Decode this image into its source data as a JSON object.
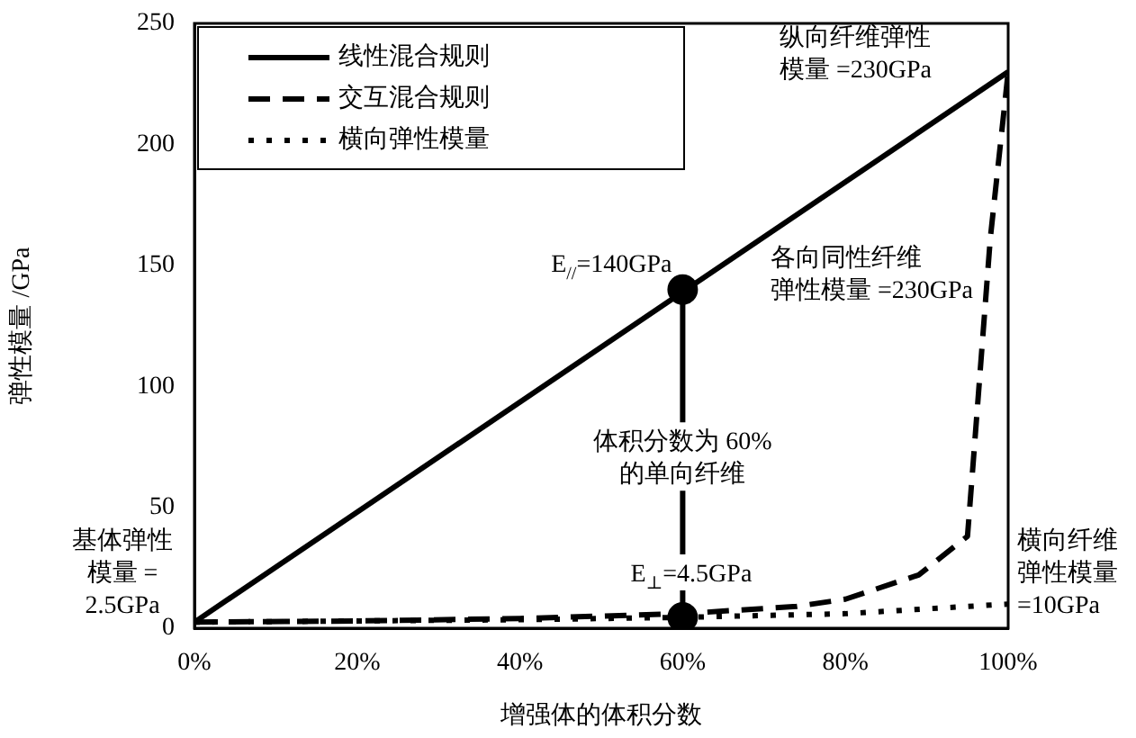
{
  "chart_data": {
    "type": "line",
    "xlabel": "增强体的体积分数",
    "ylabel": "弹性模量 /GPa",
    "xlim": [
      0,
      100
    ],
    "xticks": [
      {
        "value": 0,
        "label": "0%"
      },
      {
        "value": 20,
        "label": "20%"
      },
      {
        "value": 40,
        "label": "40%"
      },
      {
        "value": 60,
        "label": "60%"
      },
      {
        "value": 80,
        "label": "80%"
      },
      {
        "value": 100,
        "label": "100%"
      }
    ],
    "ylim": [
      0,
      250
    ],
    "yticks": [
      0,
      50,
      100,
      150,
      200,
      250
    ],
    "grid": false,
    "legend": "top left",
    "series": [
      {
        "name": "线性混合规则",
        "color": "#000000",
        "line_style": "solid",
        "marker": "none",
        "x": [
          0,
          100
        ],
        "values": [
          2.5,
          230
        ]
      },
      {
        "name": "交互混合规则",
        "color": "#000000",
        "line_style": "dashed",
        "marker": "none",
        "x": [
          0,
          20,
          40,
          60,
          74,
          80,
          89,
          95,
          95.6,
          97.8,
          100
        ],
        "values": [
          2.5,
          3,
          4,
          6,
          9,
          12,
          22,
          38,
          64,
          161,
          230
        ]
      },
      {
        "name": "横向弹性模量",
        "color": "#000000",
        "line_style": "dotted",
        "marker": "none",
        "x": [
          0,
          40,
          60,
          80,
          100
        ],
        "values": [
          2.5,
          3.5,
          4.5,
          6,
          10
        ]
      },
      {
        "color": "#000000",
        "line_style": "solid",
        "marker": "circle",
        "x": [
          60,
          60
        ],
        "values": [
          140,
          4.5
        ]
      }
    ],
    "annotations": [
      "纵向纤维弹性模量 =230GPa",
      "各向同性纤维弹性模量 =230GPa",
      {
        "text": "E$_{//}$=140GPa",
        "x": 60,
        "y": 140
      },
      {
        "text": "体积分数为 60%的单向纤维",
        "x": 60,
        "y": 68
      },
      {
        "text": "E$_{⊥}$=4.5GPa",
        "x": 60,
        "y": 4.5
      },
      {
        "text": "基体弹性模量 =2.5GPa",
        "x": 0,
        "y": 2.5
      },
      {
        "text": "横向纤维弹性模量=10GPa",
        "x": 100,
        "y": 10
      }
    ]
  }
}
